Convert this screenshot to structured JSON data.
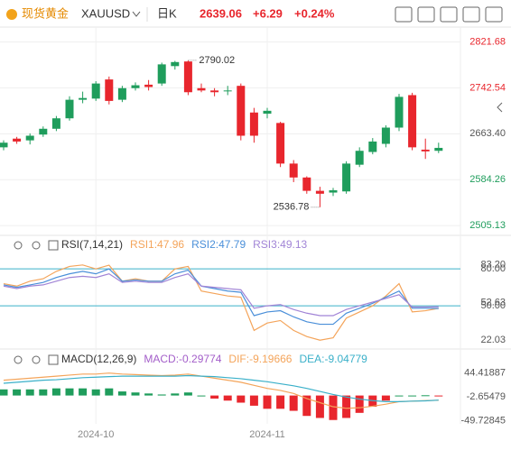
{
  "header": {
    "name": "现货黄金",
    "symbol": "XAUUSD",
    "period": "日K",
    "price": "2639.06",
    "change": "+6.29",
    "change_pct": "+0.24%"
  },
  "chart_data": [
    {
      "type": "candlestick",
      "grid": true,
      "up_color": "#1f9d5c",
      "down_color": "#e8262d",
      "ylim": [
        2496,
        2838
      ],
      "yticks": [
        2821.68,
        2742.54,
        {
          "value": 2663.4,
          "label": "2663.40"
        },
        2584.26,
        2505.13
      ],
      "ytick_colors": [
        "#e8262d",
        "#e8262d",
        "#555555",
        "#1f9d5c",
        "#1f9d5c"
      ],
      "high_label": 2790.02,
      "low_label": 2536.78,
      "categories": [
        null,
        null,
        null,
        null,
        null,
        null,
        null,
        "2024-10",
        null,
        null,
        null,
        null,
        null,
        null,
        null,
        null,
        null,
        null,
        null,
        null,
        "2024-11",
        null,
        null,
        null,
        null,
        null,
        null,
        null,
        null,
        null,
        null,
        null,
        null,
        null
      ],
      "ohlc": [
        [
          2640,
          2652,
          2635,
          2648
        ],
        [
          2655,
          2658,
          2646,
          2650
        ],
        [
          2652,
          2664,
          2645,
          2660
        ],
        [
          2662,
          2676,
          2658,
          2672
        ],
        [
          2672,
          2694,
          2668,
          2690
        ],
        [
          2690,
          2728,
          2686,
          2722
        ],
        [
          2722,
          2736,
          2716,
          2725
        ],
        [
          2724,
          2754,
          2720,
          2750
        ],
        [
          2757,
          2762,
          2714,
          2720
        ],
        [
          2722,
          2746,
          2718,
          2742
        ],
        [
          2742,
          2752,
          2738,
          2747
        ],
        [
          2748,
          2756,
          2738,
          2744
        ],
        [
          2750,
          2786,
          2746,
          2783
        ],
        [
          2780,
          2789,
          2774,
          2787
        ],
        [
          2788,
          2790.02,
          2730,
          2735
        ],
        [
          2742,
          2750,
          2735,
          2738
        ],
        [
          2738,
          2742,
          2728,
          2735
        ],
        [
          2738,
          2746,
          2730,
          2738
        ],
        [
          2746,
          2750,
          2652,
          2660
        ],
        [
          2700,
          2708,
          2648,
          2660
        ],
        [
          2698,
          2708,
          2690,
          2703
        ],
        [
          2682,
          2684,
          2606,
          2612
        ],
        [
          2612,
          2618,
          2580,
          2588
        ],
        [
          2588,
          2590,
          2560,
          2565
        ],
        [
          2565,
          2572,
          2536.78,
          2560
        ],
        [
          2562,
          2570,
          2556,
          2566
        ],
        [
          2564,
          2616,
          2560,
          2612
        ],
        [
          2610,
          2640,
          2606,
          2634
        ],
        [
          2632,
          2656,
          2628,
          2650
        ],
        [
          2646,
          2678,
          2640,
          2674
        ],
        [
          2674,
          2732,
          2668,
          2727
        ],
        [
          2730,
          2734,
          2635,
          2640
        ],
        [
          2636,
          2655,
          2620,
          2633
        ],
        [
          2634,
          2648,
          2630,
          2639.06
        ]
      ]
    },
    {
      "type": "line",
      "title": "RSI(7,14,21)",
      "ylim": [
        20,
        86
      ],
      "ref_color": "#3ab0c9",
      "yticks": [
        {
          "value": 83.2,
          "label": "83.20"
        },
        52.63,
        22.03
      ],
      "hlines": [
        {
          "value": 80,
          "label": "80.00"
        },
        {
          "value": 50,
          "label": "50.00"
        }
      ],
      "series": [
        {
          "name": "RSI1:47.96",
          "color": "#f4a45a",
          "values": [
            68,
            66,
            70,
            72,
            78,
            82,
            83.2,
            80,
            83,
            70,
            72,
            70,
            70,
            80,
            82,
            62,
            60,
            58,
            57,
            30,
            36,
            38,
            30,
            25,
            22.03,
            24,
            40,
            45,
            50,
            58,
            68,
            45,
            46,
            47.96
          ]
        },
        {
          "name": "RSI2:47.79",
          "color": "#4a8fd9",
          "values": [
            67,
            65,
            67,
            69,
            73,
            76,
            78,
            76,
            80,
            70,
            71,
            70,
            70,
            76,
            79,
            66,
            64,
            62,
            61,
            42,
            45,
            46,
            41,
            37,
            35,
            35,
            44,
            48,
            52,
            57,
            62,
            48,
            48,
            47.79
          ]
        },
        {
          "name": "RSI3:49.13",
          "color": "#a184d6",
          "values": [
            66,
            64,
            66,
            67,
            70,
            73,
            74,
            73,
            76,
            69,
            70,
            69,
            69,
            73,
            76,
            66,
            65,
            64,
            63,
            48,
            50,
            51,
            47,
            44,
            42,
            42,
            47,
            50,
            53,
            56,
            59,
            49,
            49,
            49.13
          ]
        }
      ]
    },
    {
      "type": "combo",
      "title": "MACD(12,26,9)",
      "ylim": [
        -52,
        47
      ],
      "up_color": "#1f9d5c",
      "down_color": "#e8262d",
      "yticks": [
        44.41887,
        -2.65479,
        -49.72845
      ],
      "series": [
        {
          "name": "MACD:-0.29774",
          "kind": "bar",
          "color": "#a35ec9",
          "values": [
            12,
            12,
            12,
            12,
            14,
            14,
            14,
            12,
            14,
            8,
            6,
            4,
            2,
            4,
            6,
            0,
            -6,
            -10,
            -14,
            -20,
            -26,
            -26,
            -30,
            -40,
            -44,
            -48,
            -44,
            -34,
            -22,
            -10,
            0,
            0,
            0.5,
            -0.29774
          ]
        },
        {
          "name": "DIF:-9.19666",
          "kind": "line",
          "color": "#f4a45a",
          "values": [
            30,
            32,
            34,
            36,
            38,
            40,
            42,
            42,
            44,
            42,
            41,
            40,
            39,
            40,
            42,
            38,
            34,
            30,
            26,
            20,
            14,
            10,
            4,
            -6,
            -14,
            -22,
            -25,
            -24,
            -21,
            -17,
            -12,
            -11,
            -10,
            -9.19666
          ]
        },
        {
          "name": "DEA:-9.04779",
          "kind": "line",
          "color": "#3ab0c9",
          "values": [
            24,
            26,
            28,
            30,
            31,
            33,
            35,
            36,
            37,
            38,
            38,
            38,
            38,
            38,
            39,
            38,
            37,
            35,
            33,
            30,
            27,
            23,
            19,
            14,
            8,
            2,
            -3,
            -7,
            -10,
            -12,
            -12,
            -11,
            -10.5,
            -9.04779
          ]
        }
      ]
    }
  ]
}
